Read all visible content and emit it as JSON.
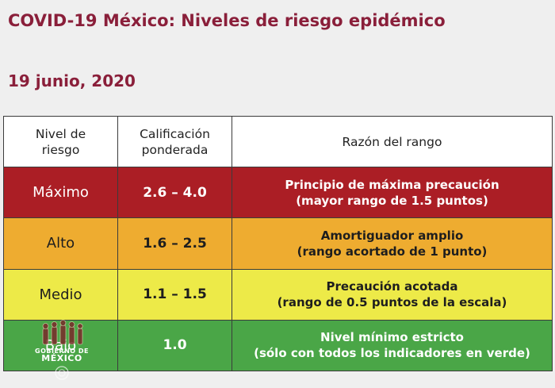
{
  "header": {
    "title": "COVID-19 México: Niveles de riesgo epidémico",
    "date": "19 junio, 2020"
  },
  "table": {
    "headers": [
      [
        "Nivel de",
        "riesgo"
      ],
      [
        "Calificación",
        "ponderada"
      ],
      [
        "Razón del rango"
      ]
    ],
    "rows": [
      {
        "level": "Máximo",
        "range": "2.6 – 4.0",
        "reason": [
          "Principio de máxima precaución",
          "(mayor rango de 1.5 puntos)"
        ],
        "color": "#ab1e25"
      },
      {
        "level": "Alto",
        "range": "1.6 – 2.5",
        "reason": [
          "Amortiguador amplio",
          "(rango acortado de 1 punto)"
        ],
        "color": "#eeac30"
      },
      {
        "level": "Medio",
        "range": "1.1 – 1.5",
        "reason": [
          "Precaución acotada",
          "(rango de 0.5 puntos de la escala)"
        ],
        "color": "#edea48"
      },
      {
        "level": "Bajo",
        "range": "1.0",
        "reason": [
          "Nivel mínimo estricto",
          "(sólo con todos los indicadores en verde)"
        ],
        "color": "#4aa647"
      }
    ]
  },
  "watermark": {
    "line1": "GOBIERNO DE",
    "line2": "MÉXICO"
  },
  "colors": {
    "title": "#8a1f3a",
    "background": "#efefef"
  }
}
